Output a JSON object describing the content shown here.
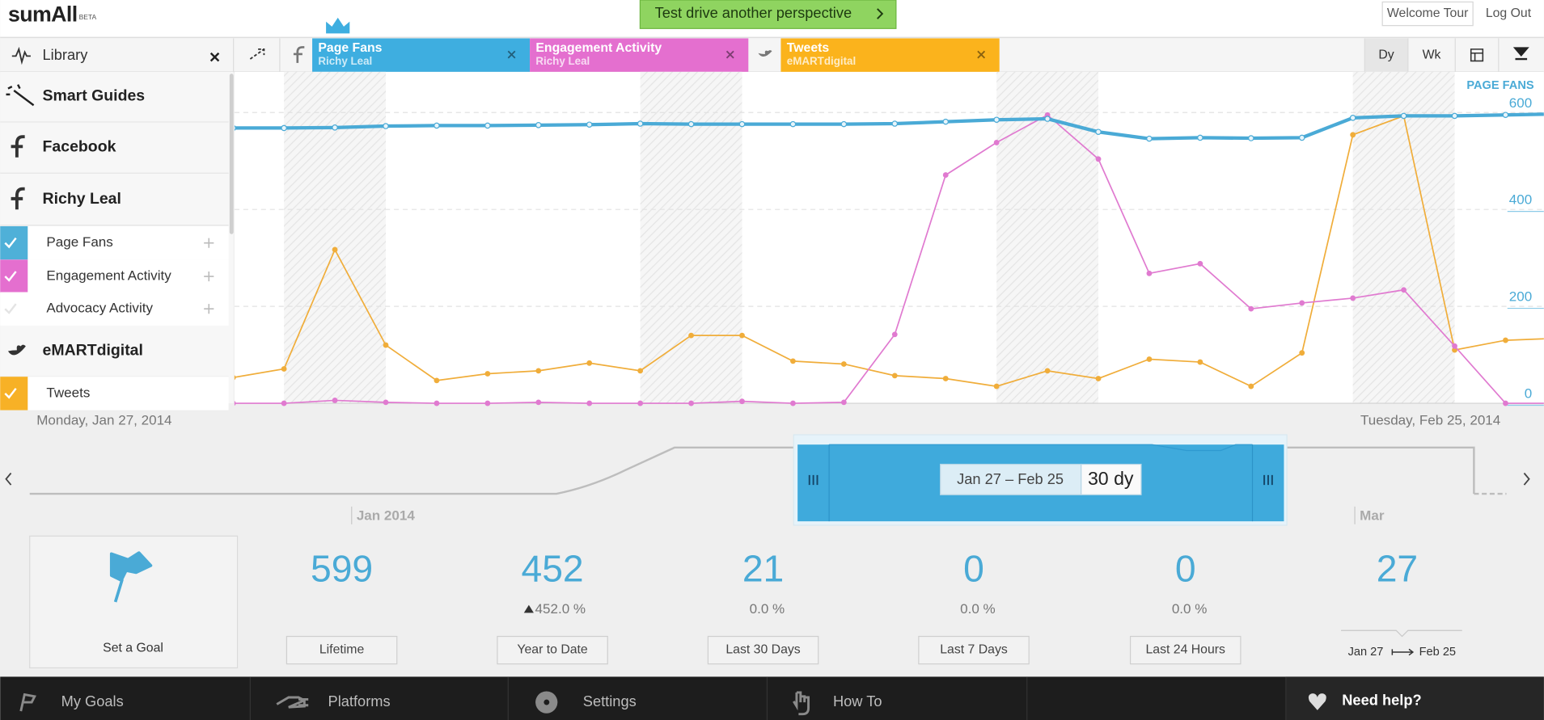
{
  "header": {
    "logo": "sumAll",
    "logo_badge": "BETA",
    "promo_button": "Test drive another perspective",
    "welcome_tour": "Welcome Tour",
    "log_out": "Log Out"
  },
  "sidebar": {
    "title": "Library",
    "items": [
      {
        "label": "Smart Guides"
      },
      {
        "label": "Facebook"
      },
      {
        "label": "Richy Leal"
      },
      {
        "label": "Page Fans",
        "checked": true,
        "color": "#4fb0d8"
      },
      {
        "label": "Engagement Activity",
        "checked": true,
        "color": "#e46fcf"
      },
      {
        "label": "Advocacy Activity",
        "checked": false
      },
      {
        "label": "eMARTdigital"
      },
      {
        "label": "Tweets",
        "checked": true,
        "color": "#f7b126"
      }
    ]
  },
  "tabs": [
    {
      "title": "Page Fans",
      "subtitle": "Richy Leal",
      "color": "#3eaee0"
    },
    {
      "title": "Engagement Activity",
      "subtitle": "Richy Leal",
      "color": "#e46fcf"
    },
    {
      "title": "Tweets",
      "subtitle": "eMARTdigital",
      "color": "#fbb31c"
    }
  ],
  "range_buttons": [
    "Dy",
    "Wk"
  ],
  "chart_data": {
    "type": "line",
    "y_label": "PAGE FANS",
    "ylim": [
      0,
      684
    ],
    "yticks": [
      0,
      200,
      400,
      600
    ],
    "grid": true,
    "series": [
      {
        "name": "Page Fans",
        "color": "#4aaad6",
        "values": [
          568,
          568,
          569,
          572,
          573,
          573,
          574,
          575,
          577,
          576,
          576,
          576,
          576,
          577,
          581,
          585,
          587,
          560,
          546,
          548,
          547,
          548,
          589,
          593,
          593,
          595,
          597
        ]
      },
      {
        "name": "Engagement Activity",
        "color": "#e07ad0",
        "values": [
          0,
          0,
          6,
          2,
          0,
          0,
          2,
          0,
          0,
          0,
          4,
          0,
          2,
          142,
          471,
          538,
          595,
          504,
          268,
          288,
          195,
          207,
          217,
          234,
          118,
          0,
          0
        ]
      },
      {
        "name": "Tweets",
        "color": "#f0ad3a",
        "values": [
          53,
          71,
          317,
          120,
          47,
          61,
          67,
          83,
          67,
          140,
          140,
          87,
          81,
          57,
          51,
          35,
          67,
          51,
          91,
          85,
          35,
          104,
          554,
          593,
          110,
          130,
          134
        ]
      }
    ],
    "start_date": "Monday, Jan 27, 2014",
    "end_date": "Tuesday, Feb 25, 2014"
  },
  "timeline": {
    "labels": [
      "Jan 2014",
      "Mar"
    ],
    "range_label": "Jan 27 – Feb 25",
    "range_length": "30 dy"
  },
  "goal": "Set a Goal",
  "stats": [
    {
      "value": 599,
      "period": "Lifetime"
    },
    {
      "value": 452,
      "change": "452.0 %",
      "trend": "up",
      "period": "Year to Date"
    },
    {
      "value": 21,
      "change": "0.0 %",
      "period": "Last 30 Days"
    },
    {
      "value": 0,
      "change": "0.0 %",
      "period": "Last 7 Days"
    },
    {
      "value": 0,
      "change": "0.0 %",
      "period": "Last 24 Hours"
    },
    {
      "value": 27,
      "from": "Jan 27",
      "to": "Feb 25"
    }
  ],
  "footer": {
    "nav": [
      "My Goals",
      "Platforms",
      "Settings",
      "How To"
    ],
    "help": "Need help?"
  }
}
